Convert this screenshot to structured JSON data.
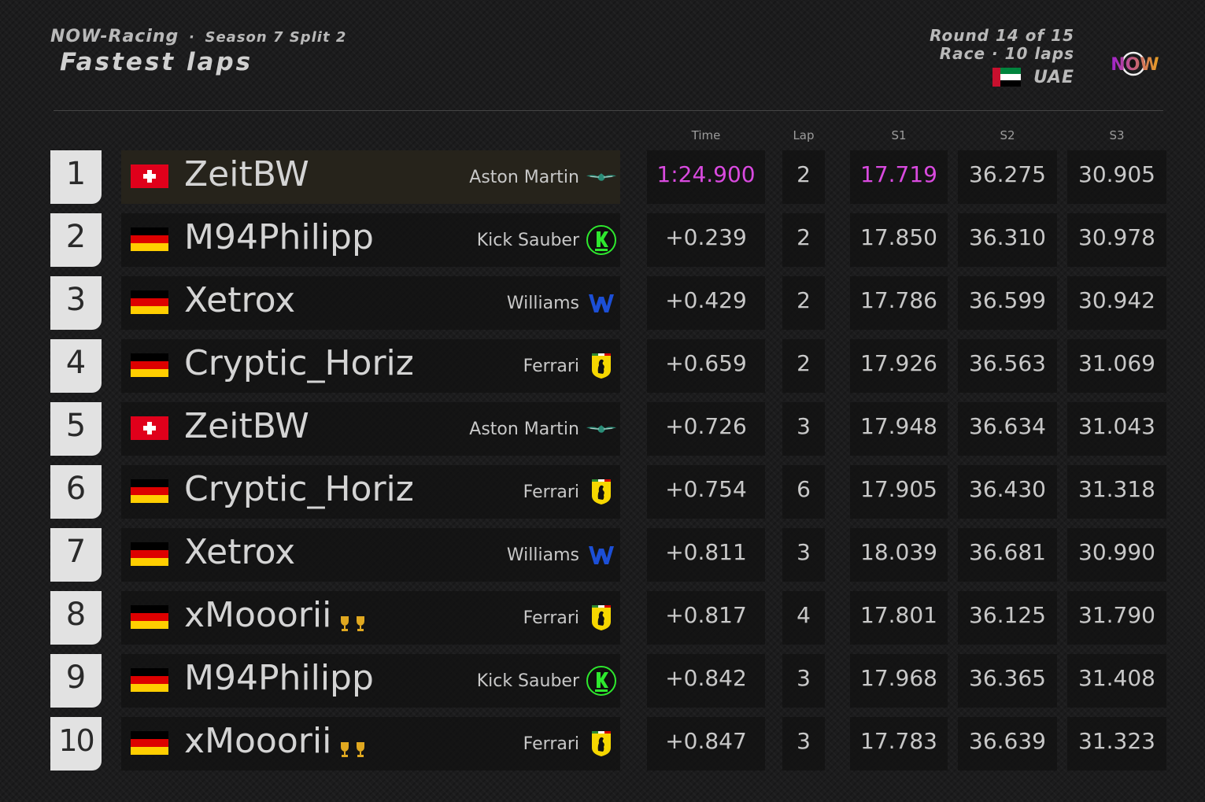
{
  "header": {
    "series": "NOW-Racing",
    "separator": "·",
    "season": "Season 7 Split 2",
    "title": "Fastest laps",
    "round": "Round 14 of 15",
    "race_info": "Race · 10 laps",
    "country": "UAE",
    "logo_text": "NOW"
  },
  "columns": {
    "time": "Time",
    "lap": "Lap",
    "s1": "S1",
    "s2": "S2",
    "s3": "S3"
  },
  "colors": {
    "fastest": "#d94adf",
    "background": "#1c1c1d",
    "position_box": "#e2e2e2"
  },
  "rows": [
    {
      "pos": "1",
      "flag": "switzerland-flag",
      "driver": "ZeitBW",
      "team": "Aston Martin",
      "team_icon": "aston-martin-logo",
      "time": "1:24.900",
      "lap": "2",
      "s1": "17.719",
      "s2": "36.275",
      "s3": "30.905",
      "trophies": 0
    },
    {
      "pos": "2",
      "flag": "germany-flag",
      "driver": "M94Philipp",
      "team": "Kick Sauber",
      "team_icon": "kick-sauber-logo",
      "time": "+0.239",
      "lap": "2",
      "s1": "17.850",
      "s2": "36.310",
      "s3": "30.978",
      "trophies": 0
    },
    {
      "pos": "3",
      "flag": "germany-flag",
      "driver": "Xetrox",
      "team": "Williams",
      "team_icon": "williams-logo",
      "time": "+0.429",
      "lap": "2",
      "s1": "17.786",
      "s2": "36.599",
      "s3": "30.942",
      "trophies": 0
    },
    {
      "pos": "4",
      "flag": "germany-flag",
      "driver": "Cryptic_Horiz",
      "team": "Ferrari",
      "team_icon": "ferrari-logo",
      "time": "+0.659",
      "lap": "2",
      "s1": "17.926",
      "s2": "36.563",
      "s3": "31.069",
      "trophies": 0
    },
    {
      "pos": "5",
      "flag": "switzerland-flag",
      "driver": "ZeitBW",
      "team": "Aston Martin",
      "team_icon": "aston-martin-logo",
      "time": "+0.726",
      "lap": "3",
      "s1": "17.948",
      "s2": "36.634",
      "s3": "31.043",
      "trophies": 0
    },
    {
      "pos": "6",
      "flag": "germany-flag",
      "driver": "Cryptic_Horiz",
      "team": "Ferrari",
      "team_icon": "ferrari-logo",
      "time": "+0.754",
      "lap": "6",
      "s1": "17.905",
      "s2": "36.430",
      "s3": "31.318",
      "trophies": 0
    },
    {
      "pos": "7",
      "flag": "germany-flag",
      "driver": "Xetrox",
      "team": "Williams",
      "team_icon": "williams-logo",
      "time": "+0.811",
      "lap": "3",
      "s1": "18.039",
      "s2": "36.681",
      "s3": "30.990",
      "trophies": 0
    },
    {
      "pos": "8",
      "flag": "germany-flag",
      "driver": "xMooorii",
      "team": "Ferrari",
      "team_icon": "ferrari-logo",
      "time": "+0.817",
      "lap": "4",
      "s1": "17.801",
      "s2": "36.125",
      "s3": "31.790",
      "trophies": 2
    },
    {
      "pos": "9",
      "flag": "germany-flag",
      "driver": "M94Philipp",
      "team": "Kick Sauber",
      "team_icon": "kick-sauber-logo",
      "time": "+0.842",
      "lap": "3",
      "s1": "17.968",
      "s2": "36.365",
      "s3": "31.408",
      "trophies": 0
    },
    {
      "pos": "10",
      "flag": "germany-flag",
      "driver": "xMooorii",
      "team": "Ferrari",
      "team_icon": "ferrari-logo",
      "time": "+0.847",
      "lap": "3",
      "s1": "17.783",
      "s2": "36.639",
      "s3": "31.323",
      "trophies": 2
    }
  ]
}
